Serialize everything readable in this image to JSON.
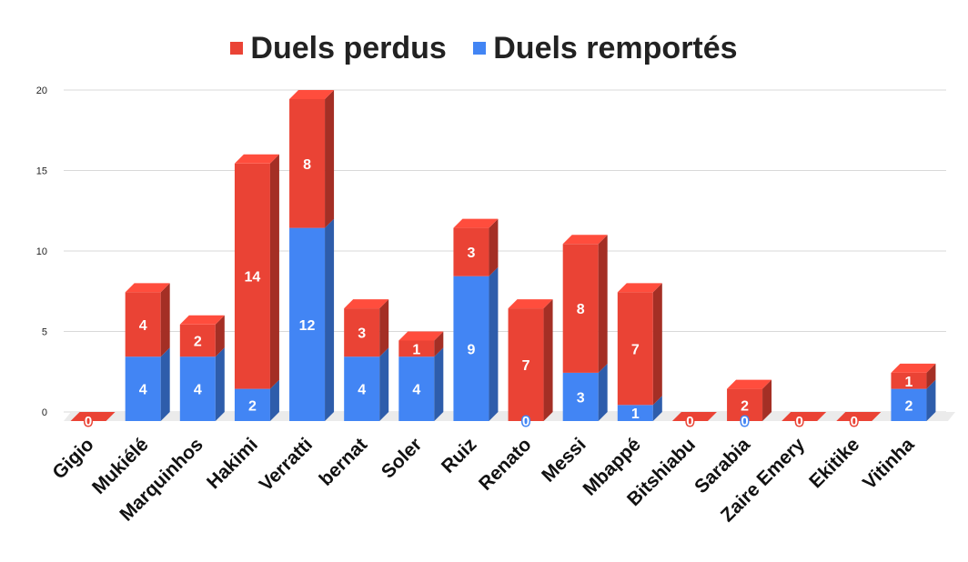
{
  "chart_data": {
    "type": "bar",
    "stacked": true,
    "three_d": true,
    "categories": [
      "Gigio",
      "Mukiélé",
      "Marquinhos",
      "Hakimi",
      "Verratti",
      "bernat",
      "Soler",
      "Ruiz",
      "Renato",
      "Messi",
      "Mbappé",
      "Bitshiabu",
      "Sarabia",
      "Zaire Emery",
      "Ekitike",
      "Vitinha"
    ],
    "series": [
      {
        "name": "Duels remportés",
        "color": "#4285f4",
        "values": [
          0,
          4,
          4,
          2,
          12,
          4,
          4,
          9,
          0,
          3,
          1,
          0,
          0,
          0,
          0,
          2
        ]
      },
      {
        "name": "Duels perdus",
        "color": "#ea4335",
        "values": [
          0,
          4,
          2,
          14,
          8,
          3,
          1,
          3,
          7,
          8,
          7,
          0,
          2,
          0,
          0,
          1
        ]
      }
    ],
    "legend": {
      "position": "top",
      "order": [
        "Duels perdus",
        "Duels remportés"
      ]
    },
    "yticks": [
      "0",
      "5",
      "10",
      "15",
      "20"
    ],
    "ylim": [
      0,
      20
    ],
    "grid": true
  }
}
